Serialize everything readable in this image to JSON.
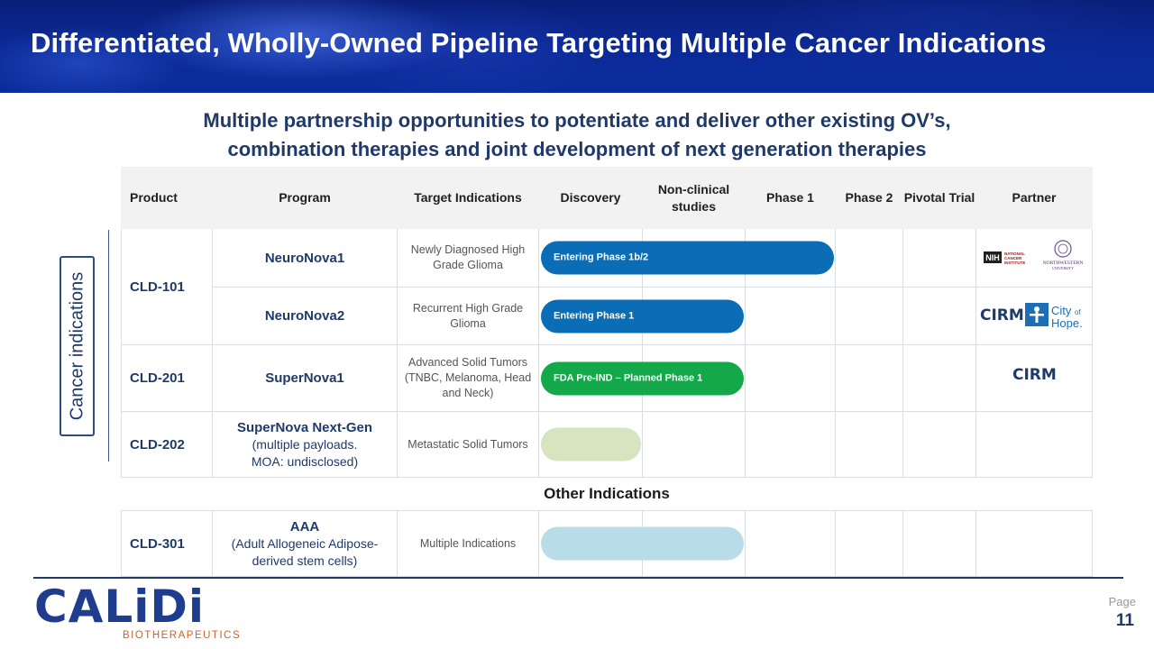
{
  "header": {
    "title": "Differentiated, Wholly-Owned Pipeline Targeting Multiple Cancer Indications",
    "subtitle_line1": "Multiple partnership opportunities to potentiate and deliver other existing OV’s,",
    "subtitle_line2": "combination therapies and joint development of next generation therapies"
  },
  "side_label": "Cancer indications",
  "table": {
    "columns": {
      "product": "Product",
      "program": "Program",
      "target": "Target Indications",
      "discovery": "Discovery",
      "nonclinical": "Non-clinical studies",
      "phase1": "Phase 1",
      "phase2": "Phase 2",
      "pivotal": "Pivotal Trial",
      "partner": "Partner"
    },
    "rows": [
      {
        "product": "CLD-101",
        "program": "NeuroNova1",
        "indication": "Newly Diagnosed High Grade Glioma",
        "bar_label": "Entering Phase 1b/2",
        "bar_color": "#0b6db5",
        "partners": [
          "NIH NATIONAL CANCER INSTITUTE",
          "NORTHWESTERN UNIVERSITY"
        ]
      },
      {
        "program": "NeuroNova2",
        "indication": "Recurrent High Grade Glioma",
        "bar_label": "Entering Phase 1",
        "bar_color": "#0b6db5",
        "partners": [
          "CIRM",
          "City of Hope"
        ]
      },
      {
        "product": "CLD-201",
        "program": "SuperNova1",
        "indication": "Advanced Solid Tumors (TNBC, Melanoma, Head and Neck)",
        "bar_label": "FDA Pre-IND – Planned Phase 1",
        "bar_color": "#13a84a",
        "partners": [
          "CIRM"
        ]
      },
      {
        "product": "CLD-202",
        "program": "SuperNova Next-Gen",
        "program_note_1": "(multiple payloads.",
        "program_note_2": "MOA: undisclosed)",
        "indication": "Metastatic Solid Tumors",
        "bar_label": "",
        "bar_color": "#d6e4bf",
        "partners": []
      }
    ],
    "other_indications_label": "Other Indications",
    "other_rows": [
      {
        "product": "CLD-301",
        "program": "AAA",
        "program_note_1": "(Adult Allogeneic Adipose-",
        "program_note_2": "derived stem cells)",
        "indication": "Multiple Indications",
        "bar_label": "",
        "bar_color": "#b9dde8"
      }
    ]
  },
  "progress_stage_counts": {
    "row_0": 3,
    "row_1": 2,
    "row_2": 2,
    "row_3": 1,
    "other_0": 2
  },
  "footer": {
    "logo_text": "CALiDi",
    "logo_subtext": "BIOTHERAPEUTICS",
    "page_label": "Page",
    "page_number": "11"
  }
}
